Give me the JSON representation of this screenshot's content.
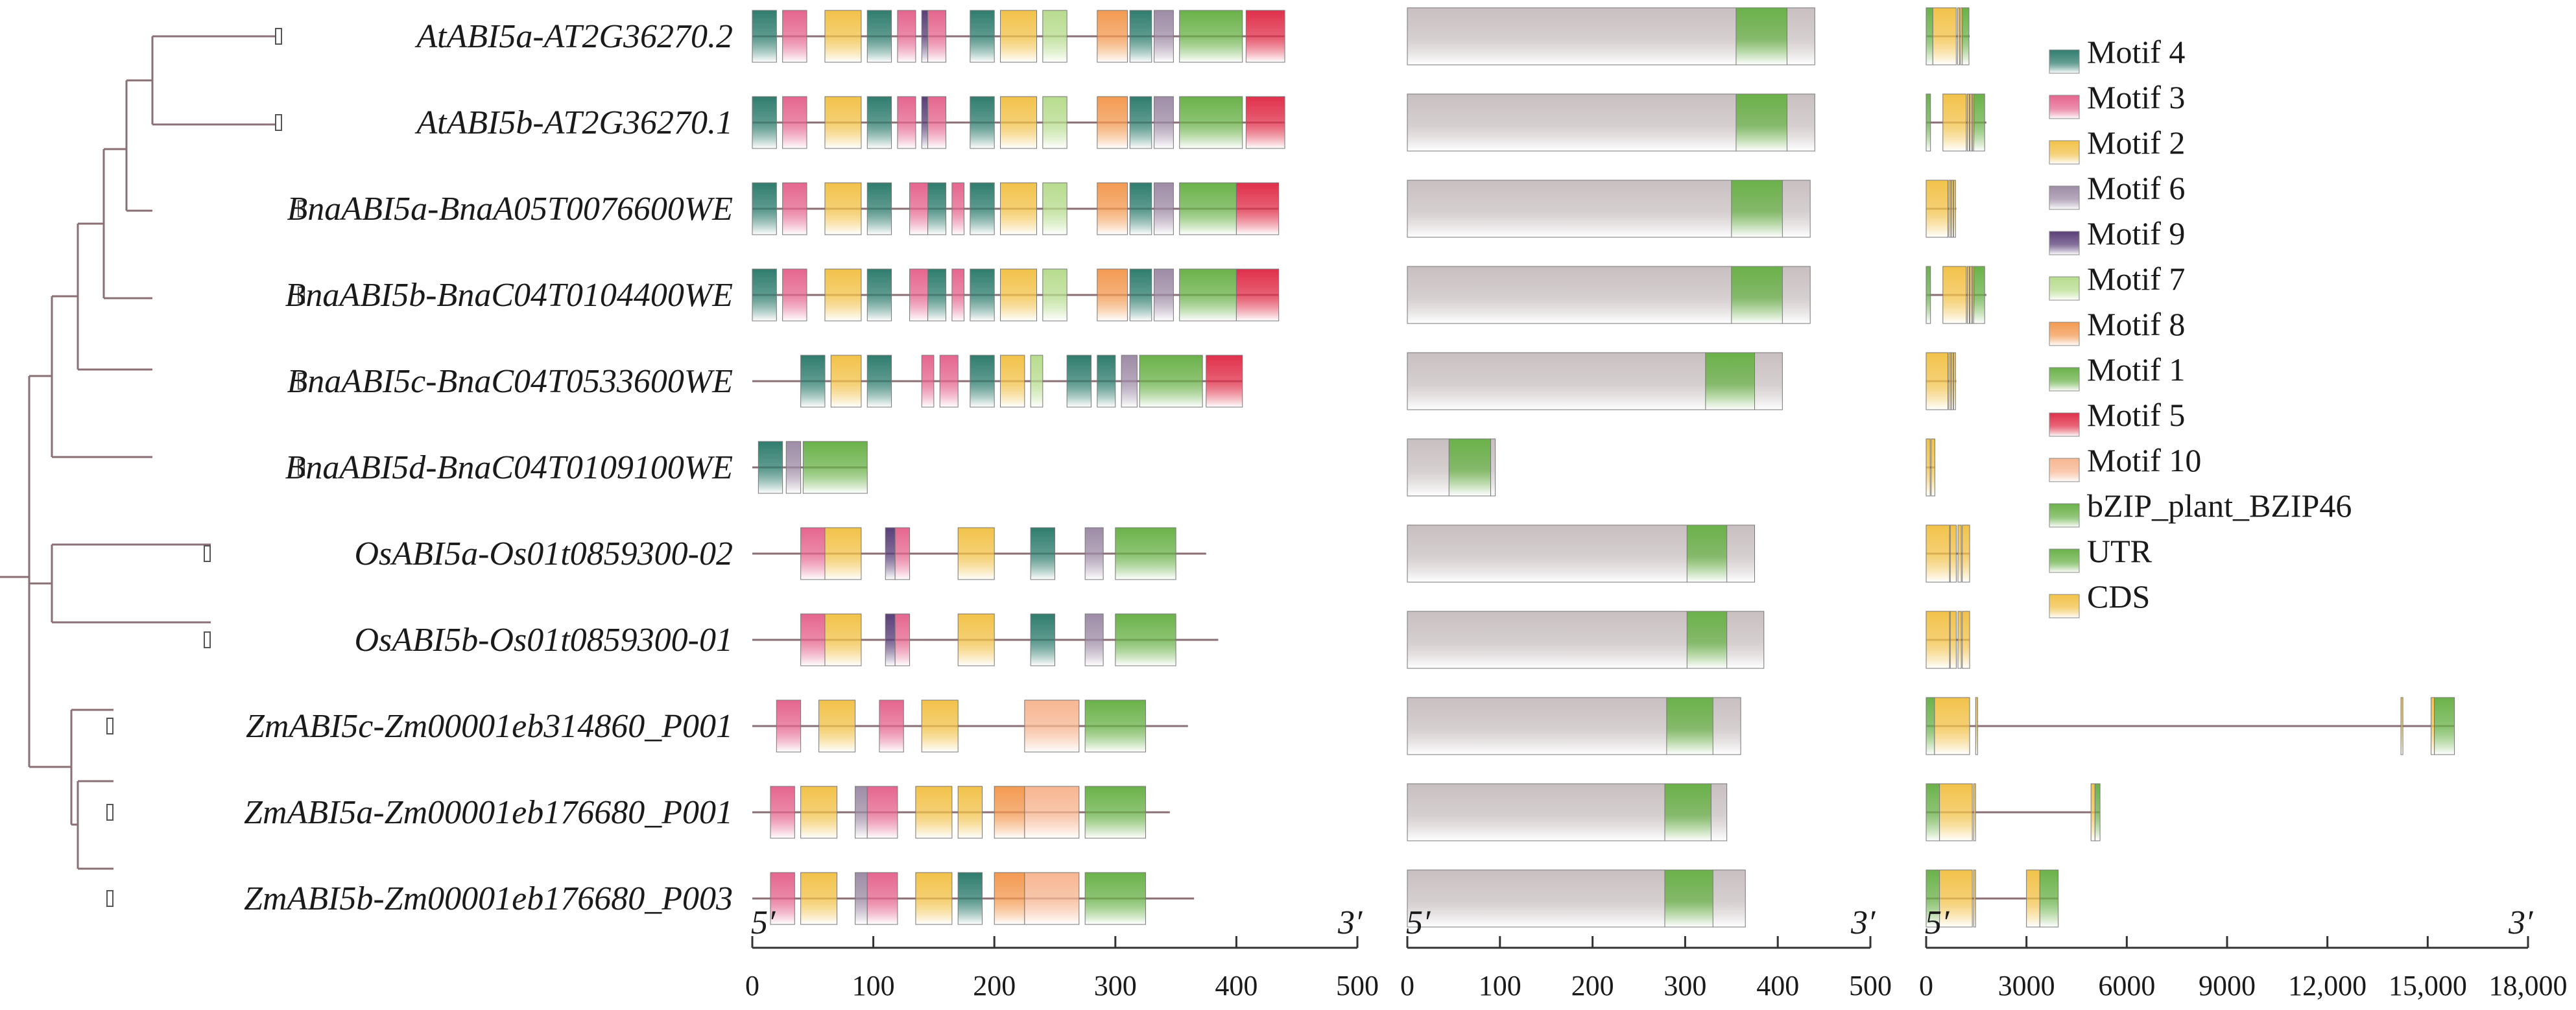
{
  "colors": {
    "motif_4": "#2f7d6e",
    "motif_3": "#e5668f",
    "motif_2": "#f2c24a",
    "motif_6": "#9e8ca6",
    "motif_9": "#5a3f78",
    "motif_7": "#b7dc8e",
    "motif_8": "#f39a52",
    "motif_1": "#6bb24a",
    "motif_5": "#e0304a",
    "motif_10": "#f7b692",
    "domain": "#6bb24a",
    "utr": "#6bb24a",
    "cds": "#f2c24a",
    "protein": "#c8bfc0",
    "line": "#8a6f75"
  },
  "genes": [
    "AtABI5a-AT2G36270.2",
    "AtABI5b-AT2G36270.1",
    "BnaABI5a-BnaA05T0076600WE",
    "BnaABI5b-BnaC04T0104400WE",
    "BnaABI5c-BnaC04T0533600WE",
    "BnaABI5d-BnaC04T0109100WE",
    "OsABI5a-Os01t0859300-02",
    "OsABI5b-Os01t0859300-01",
    "ZmABI5c-Zm00001eb314860_P001",
    "ZmABI5a-Zm00001eb176680_P001",
    "ZmABI5b-Zm00001eb176680_P003"
  ],
  "legend": [
    {
      "label": "Motif 4",
      "color": "motif_4"
    },
    {
      "label": "Motif 3",
      "color": "motif_3"
    },
    {
      "label": "Motif 2",
      "color": "motif_2"
    },
    {
      "label": "Motif 6",
      "color": "motif_6"
    },
    {
      "label": "Motif 9",
      "color": "motif_9"
    },
    {
      "label": "Motif 7",
      "color": "motif_7"
    },
    {
      "label": "Motif 8",
      "color": "motif_8"
    },
    {
      "label": "Motif 1",
      "color": "motif_1"
    },
    {
      "label": "Motif 5",
      "color": "motif_5"
    },
    {
      "label": "Motif 10",
      "color": "motif_10"
    },
    {
      "label": "bZIP_plant_BZIP46",
      "color": "domain"
    },
    {
      "label": "UTR",
      "color": "utr"
    },
    {
      "label": "CDS",
      "color": "cds"
    }
  ],
  "motif_panel": {
    "proteins": [
      {
        "length": 440,
        "motifs": [
          [
            "motif_4",
            0,
            20
          ],
          [
            "motif_3",
            25,
            45
          ],
          [
            "motif_2",
            60,
            90
          ],
          [
            "motif_4",
            95,
            115
          ],
          [
            "motif_3",
            120,
            135
          ],
          [
            "motif_9",
            140,
            145
          ],
          [
            "motif_3",
            145,
            160
          ],
          [
            "motif_4",
            180,
            200
          ],
          [
            "motif_2",
            205,
            235
          ],
          [
            "motif_7",
            240,
            260
          ],
          [
            "motif_8",
            285,
            310
          ],
          [
            "motif_4",
            312,
            330
          ],
          [
            "motif_6",
            332,
            348
          ],
          [
            "motif_1",
            353,
            405
          ],
          [
            "motif_5",
            408,
            440
          ]
        ]
      },
      {
        "length": 440,
        "motifs": [
          [
            "motif_4",
            0,
            20
          ],
          [
            "motif_3",
            25,
            45
          ],
          [
            "motif_2",
            60,
            90
          ],
          [
            "motif_4",
            95,
            115
          ],
          [
            "motif_3",
            120,
            135
          ],
          [
            "motif_9",
            140,
            145
          ],
          [
            "motif_3",
            145,
            160
          ],
          [
            "motif_4",
            180,
            200
          ],
          [
            "motif_2",
            205,
            235
          ],
          [
            "motif_7",
            240,
            260
          ],
          [
            "motif_8",
            285,
            310
          ],
          [
            "motif_4",
            312,
            330
          ],
          [
            "motif_6",
            332,
            348
          ],
          [
            "motif_1",
            353,
            405
          ],
          [
            "motif_5",
            408,
            440
          ]
        ]
      },
      {
        "length": 435,
        "motifs": [
          [
            "motif_4",
            0,
            20
          ],
          [
            "motif_3",
            25,
            45
          ],
          [
            "motif_2",
            60,
            90
          ],
          [
            "motif_4",
            95,
            115
          ],
          [
            "motif_3",
            130,
            145
          ],
          [
            "motif_4",
            145,
            160
          ],
          [
            "motif_3",
            165,
            175
          ],
          [
            "motif_4",
            180,
            200
          ],
          [
            "motif_2",
            205,
            235
          ],
          [
            "motif_7",
            240,
            260
          ],
          [
            "motif_8",
            285,
            310
          ],
          [
            "motif_4",
            312,
            330
          ],
          [
            "motif_6",
            332,
            348
          ],
          [
            "motif_1",
            353,
            400
          ],
          [
            "motif_5",
            400,
            435
          ]
        ]
      },
      {
        "length": 435,
        "motifs": [
          [
            "motif_4",
            0,
            20
          ],
          [
            "motif_3",
            25,
            45
          ],
          [
            "motif_2",
            60,
            90
          ],
          [
            "motif_4",
            95,
            115
          ],
          [
            "motif_3",
            130,
            145
          ],
          [
            "motif_4",
            145,
            160
          ],
          [
            "motif_3",
            165,
            175
          ],
          [
            "motif_4",
            180,
            200
          ],
          [
            "motif_2",
            205,
            235
          ],
          [
            "motif_7",
            240,
            260
          ],
          [
            "motif_8",
            285,
            310
          ],
          [
            "motif_4",
            312,
            330
          ],
          [
            "motif_6",
            332,
            348
          ],
          [
            "motif_1",
            353,
            400
          ],
          [
            "motif_5",
            400,
            435
          ]
        ]
      },
      {
        "length": 405,
        "motifs": [
          [
            "motif_4",
            40,
            60
          ],
          [
            "motif_2",
            65,
            90
          ],
          [
            "motif_4",
            95,
            115
          ],
          [
            "motif_3",
            140,
            150
          ],
          [
            "motif_3",
            155,
            170
          ],
          [
            "motif_4",
            180,
            200
          ],
          [
            "motif_2",
            205,
            225
          ],
          [
            "motif_7",
            230,
            240
          ],
          [
            "motif_4",
            260,
            280
          ],
          [
            "motif_4",
            285,
            300
          ],
          [
            "motif_6",
            305,
            318
          ],
          [
            "motif_1",
            320,
            372
          ],
          [
            "motif_5",
            375,
            405
          ]
        ]
      },
      {
        "length": 95,
        "motifs": [
          [
            "motif_4",
            5,
            25
          ],
          [
            "motif_6",
            28,
            40
          ],
          [
            "motif_1",
            42,
            95
          ]
        ]
      },
      {
        "length": 375,
        "motifs": [
          [
            "motif_3",
            40,
            60
          ],
          [
            "motif_2",
            60,
            90
          ],
          [
            "motif_9",
            110,
            118
          ],
          [
            "motif_3",
            118,
            130
          ],
          [
            "motif_2",
            170,
            200
          ],
          [
            "motif_4",
            230,
            250
          ],
          [
            "motif_6",
            275,
            290
          ],
          [
            "motif_1",
            300,
            350
          ]
        ]
      },
      {
        "length": 385,
        "motifs": [
          [
            "motif_3",
            40,
            60
          ],
          [
            "motif_2",
            60,
            90
          ],
          [
            "motif_9",
            110,
            118
          ],
          [
            "motif_3",
            118,
            130
          ],
          [
            "motif_2",
            170,
            200
          ],
          [
            "motif_4",
            230,
            250
          ],
          [
            "motif_6",
            275,
            290
          ],
          [
            "motif_1",
            300,
            350
          ]
        ]
      },
      {
        "length": 360,
        "motifs": [
          [
            "motif_3",
            20,
            40
          ],
          [
            "motif_2",
            55,
            85
          ],
          [
            "motif_3",
            105,
            125
          ],
          [
            "motif_2",
            140,
            170
          ],
          [
            "motif_10",
            225,
            270
          ],
          [
            "motif_1",
            275,
            325
          ]
        ]
      },
      {
        "length": 345,
        "motifs": [
          [
            "motif_3",
            15,
            35
          ],
          [
            "motif_2",
            40,
            70
          ],
          [
            "motif_6",
            85,
            95
          ],
          [
            "motif_3",
            95,
            120
          ],
          [
            "motif_2",
            135,
            165
          ],
          [
            "motif_2",
            170,
            190
          ],
          [
            "motif_8",
            200,
            225
          ],
          [
            "motif_10",
            225,
            270
          ],
          [
            "motif_1",
            275,
            325
          ]
        ]
      },
      {
        "length": 365,
        "motifs": [
          [
            "motif_3",
            15,
            35
          ],
          [
            "motif_2",
            40,
            70
          ],
          [
            "motif_6",
            85,
            95
          ],
          [
            "motif_3",
            95,
            120
          ],
          [
            "motif_2",
            135,
            165
          ],
          [
            "motif_4",
            170,
            190
          ],
          [
            "motif_8",
            200,
            225
          ],
          [
            "motif_10",
            225,
            270
          ],
          [
            "motif_1",
            275,
            325
          ]
        ]
      }
    ],
    "axis": {
      "min": 0,
      "max": 500,
      "ticks": [
        "0",
        "100",
        "200",
        "300",
        "400",
        "500"
      ],
      "left_label": "5′",
      "right_label": "3′"
    }
  },
  "domain_panel": {
    "proteins": [
      {
        "length": 440,
        "domain": [
          355,
          410
        ]
      },
      {
        "length": 440,
        "domain": [
          355,
          410
        ]
      },
      {
        "length": 435,
        "domain": [
          350,
          405
        ]
      },
      {
        "length": 435,
        "domain": [
          350,
          405
        ]
      },
      {
        "length": 405,
        "domain": [
          322,
          375
        ]
      },
      {
        "length": 95,
        "domain": [
          45,
          90
        ]
      },
      {
        "length": 375,
        "domain": [
          302,
          345
        ]
      },
      {
        "length": 385,
        "domain": [
          302,
          345
        ]
      },
      {
        "length": 360,
        "domain": [
          280,
          330
        ]
      },
      {
        "length": 345,
        "domain": [
          278,
          328
        ]
      },
      {
        "length": 365,
        "domain": [
          278,
          330
        ]
      }
    ],
    "axis": {
      "min": 0,
      "max": 500,
      "ticks": [
        "0",
        "100",
        "200",
        "300",
        "400",
        "500"
      ],
      "left_label": "5′",
      "right_label": "3′"
    }
  },
  "gene_panel": {
    "genes": [
      {
        "length": 1300,
        "blocks": [
          [
            "utr",
            0,
            200
          ],
          [
            "cds",
            200,
            900
          ],
          [
            "cds",
            940,
            1000
          ],
          [
            "cds",
            1030,
            1080
          ],
          [
            "utr",
            1080,
            1280
          ]
        ]
      },
      {
        "length": 1800,
        "blocks": [
          [
            "utr",
            0,
            130
          ],
          [
            "cds",
            500,
            1200
          ],
          [
            "cds",
            1230,
            1280
          ],
          [
            "cds",
            1310,
            1360
          ],
          [
            "cds",
            1380,
            1420
          ],
          [
            "utr",
            1420,
            1750
          ]
        ]
      },
      {
        "length": 900,
        "blocks": [
          [
            "cds",
            0,
            650
          ],
          [
            "cds",
            680,
            720
          ],
          [
            "cds",
            750,
            790
          ],
          [
            "cds",
            820,
            860
          ]
        ]
      },
      {
        "length": 1800,
        "blocks": [
          [
            "utr",
            0,
            130
          ],
          [
            "cds",
            500,
            1200
          ],
          [
            "cds",
            1230,
            1280
          ],
          [
            "cds",
            1310,
            1360
          ],
          [
            "cds",
            1380,
            1420
          ],
          [
            "utr",
            1420,
            1750
          ]
        ]
      },
      {
        "length": 900,
        "blocks": [
          [
            "cds",
            0,
            650
          ],
          [
            "cds",
            680,
            720
          ],
          [
            "cds",
            750,
            790
          ],
          [
            "cds",
            820,
            860
          ]
        ]
      },
      {
        "length": 260,
        "blocks": [
          [
            "cds",
            0,
            120
          ],
          [
            "cds",
            150,
            260
          ]
        ]
      },
      {
        "length": 1300,
        "blocks": [
          [
            "cds",
            0,
            700
          ],
          [
            "cds",
            720,
            900
          ],
          [
            "cds",
            950,
            1050
          ],
          [
            "cds",
            1080,
            1300
          ]
        ]
      },
      {
        "length": 1300,
        "blocks": [
          [
            "cds",
            0,
            700
          ],
          [
            "cds",
            720,
            900
          ],
          [
            "cds",
            950,
            1050
          ],
          [
            "cds",
            1080,
            1300
          ]
        ]
      },
      {
        "length": 15800,
        "blocks": [
          [
            "utr",
            0,
            250
          ],
          [
            "cds",
            250,
            1300
          ],
          [
            "cds",
            1480,
            1520
          ],
          [
            "cds",
            14200,
            14250
          ],
          [
            "cds",
            15100,
            15200
          ],
          [
            "utr",
            15200,
            15800
          ]
        ]
      },
      {
        "length": 5200,
        "blocks": [
          [
            "utr",
            0,
            400
          ],
          [
            "cds",
            400,
            1380
          ],
          [
            "cds",
            1420,
            1460
          ],
          [
            "cds",
            4930,
            5050
          ],
          [
            "utr",
            5050,
            5200
          ]
        ]
      },
      {
        "length": 3950,
        "blocks": [
          [
            "utr",
            0,
            400
          ],
          [
            "cds",
            400,
            1380
          ],
          [
            "cds",
            1420,
            1460
          ],
          [
            "cds",
            3000,
            3400
          ],
          [
            "utr",
            3400,
            3950
          ]
        ]
      }
    ],
    "axis": {
      "min": 0,
      "max": 18000,
      "ticks": [
        "0",
        "3000",
        "6000",
        "9000",
        "12,000",
        "15,000",
        "18,000"
      ],
      "left_label": "5′",
      "right_label": "3′"
    }
  }
}
